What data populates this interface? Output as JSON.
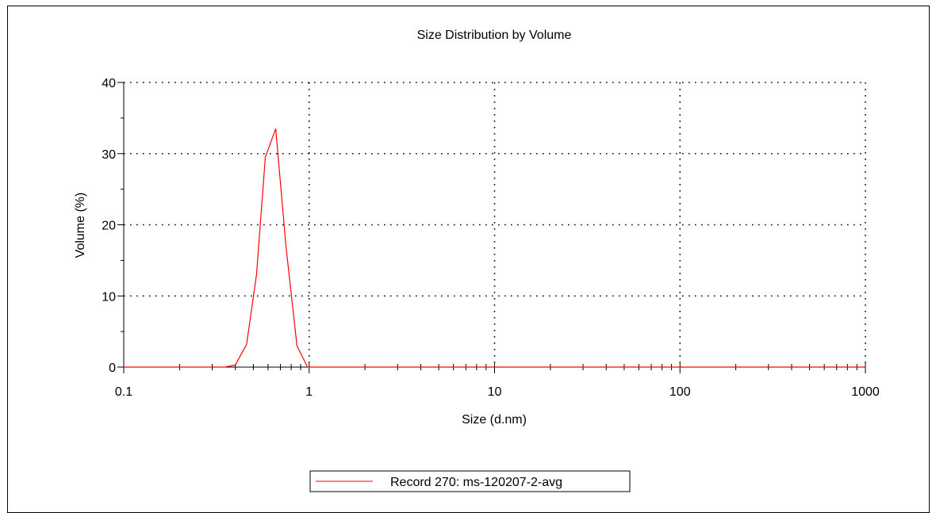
{
  "chart_data": {
    "type": "line",
    "title": "Size Distribution by Volume",
    "xlabel": "Size (d.nm)",
    "ylabel": "Volume (%)",
    "x_scale": "log",
    "xlim": [
      0.1,
      1000
    ],
    "ylim": [
      0,
      40
    ],
    "x_ticks": [
      "0.1",
      "1",
      "10",
      "100",
      "1000"
    ],
    "y_ticks": [
      "0",
      "10",
      "20",
      "30",
      "40"
    ],
    "grid": true,
    "legend_position": "bottom-center",
    "series": [
      {
        "name": "Record 270: ms-120207-2-avg",
        "color": "#ff0000",
        "x": [
          0.1,
          0.35,
          0.4,
          0.46,
          0.52,
          0.58,
          0.66,
          0.75,
          0.86,
          0.98,
          1.1,
          10,
          100,
          1000
        ],
        "y": [
          0,
          0,
          0.3,
          3.2,
          13,
          29.5,
          33.5,
          17,
          3,
          0,
          0,
          0,
          0,
          0
        ]
      }
    ]
  }
}
